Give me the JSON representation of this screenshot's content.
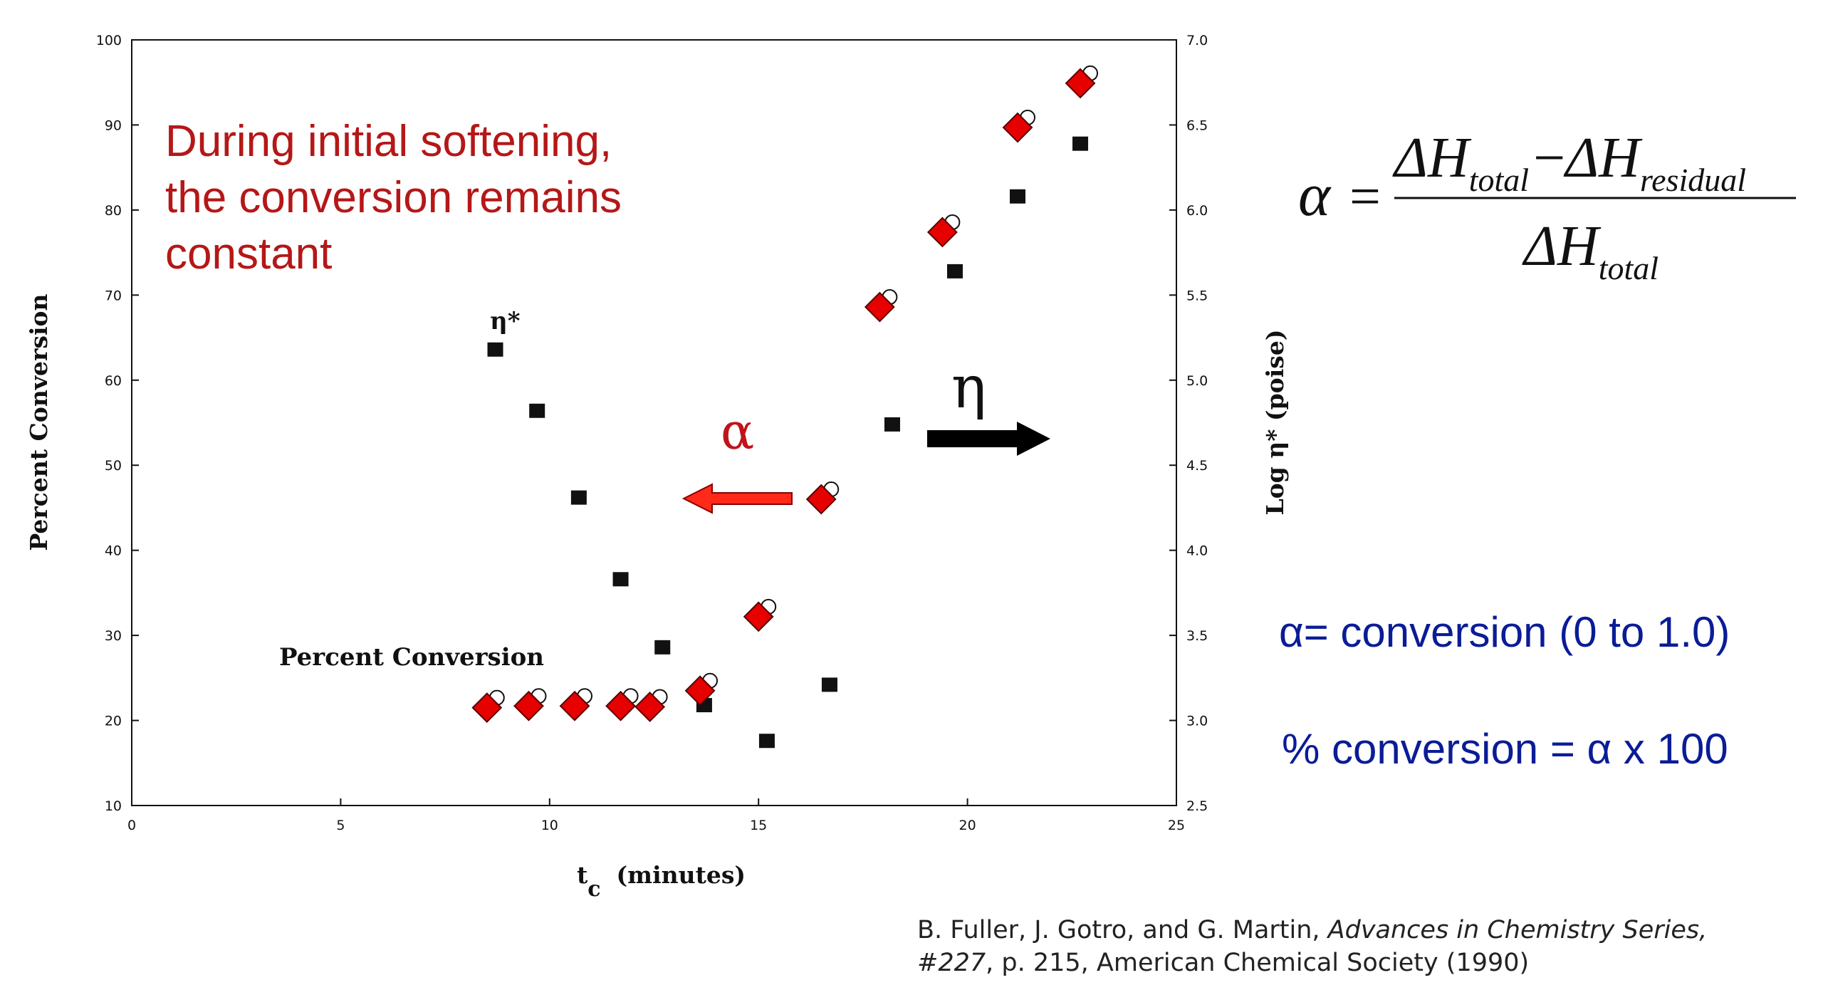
{
  "chart_data": {
    "type": "scatter",
    "xlabel_main": "t",
    "xlabel_sub": "c",
    "xlabel_rest": "(minutes)",
    "ylabel_left": "Percent Conversion",
    "ylabel_right": "Log η* (poise)",
    "xlim": [
      0,
      25
    ],
    "ylim_left": [
      10,
      100
    ],
    "ylim_right": [
      2.5,
      7.0
    ],
    "x_ticks": [
      "0",
      "5",
      "10",
      "15",
      "20",
      "25"
    ],
    "y_left_ticks": [
      "10",
      "20",
      "30",
      "40",
      "50",
      "60",
      "70",
      "80",
      "90",
      "100"
    ],
    "y_right_ticks": [
      "2.5",
      "3.0",
      "3.5",
      "4.0",
      "4.5",
      "5.0",
      "5.5",
      "6.0",
      "6.5",
      "7.0"
    ],
    "series": [
      {
        "label": "Percent Conversion",
        "axis": "left",
        "marker": "diamond",
        "color": "#e60000",
        "x": [
          8.5,
          9.5,
          10.6,
          11.7,
          12.4,
          13.6,
          15.0,
          16.5,
          17.9,
          19.4,
          21.2,
          22.7
        ],
        "y": [
          21.5,
          21.7,
          21.7,
          21.7,
          21.6,
          23.5,
          32.2,
          46.0,
          68.6,
          77.4,
          89.7,
          94.9
        ]
      },
      {
        "label": "η*",
        "axis": "right",
        "marker": "square",
        "color": "#111111",
        "x": [
          8.7,
          9.7,
          10.7,
          11.7,
          12.7,
          13.7,
          15.2,
          16.7,
          18.2,
          19.7,
          21.2,
          22.7
        ],
        "y": [
          5.18,
          4.82,
          4.31,
          3.83,
          3.43,
          3.09,
          2.88,
          3.21,
          4.74,
          5.64,
          6.08,
          6.39
        ]
      }
    ],
    "annotations": {
      "softening": [
        "During initial softening,",
        "the conversion remains",
        "constant"
      ],
      "alpha_arrow": "α",
      "eta_arrow": "η",
      "alpha_def": "α= conversion (0 to 1.0)",
      "pct_def": "% conversion = α x 100"
    },
    "formula": {
      "lhs": "α",
      "eq": "=",
      "delta": "ΔH",
      "sub_total": "total",
      "minus": "−",
      "sub_residual": "residual"
    }
  },
  "citation": {
    "authors": "B. Fuller, J. Gotro, and G. Martin, ",
    "series": "Advances in Chemistry Series,",
    "number": "#227",
    "rest": ", p. 215, American Chemical Society (1990)"
  }
}
